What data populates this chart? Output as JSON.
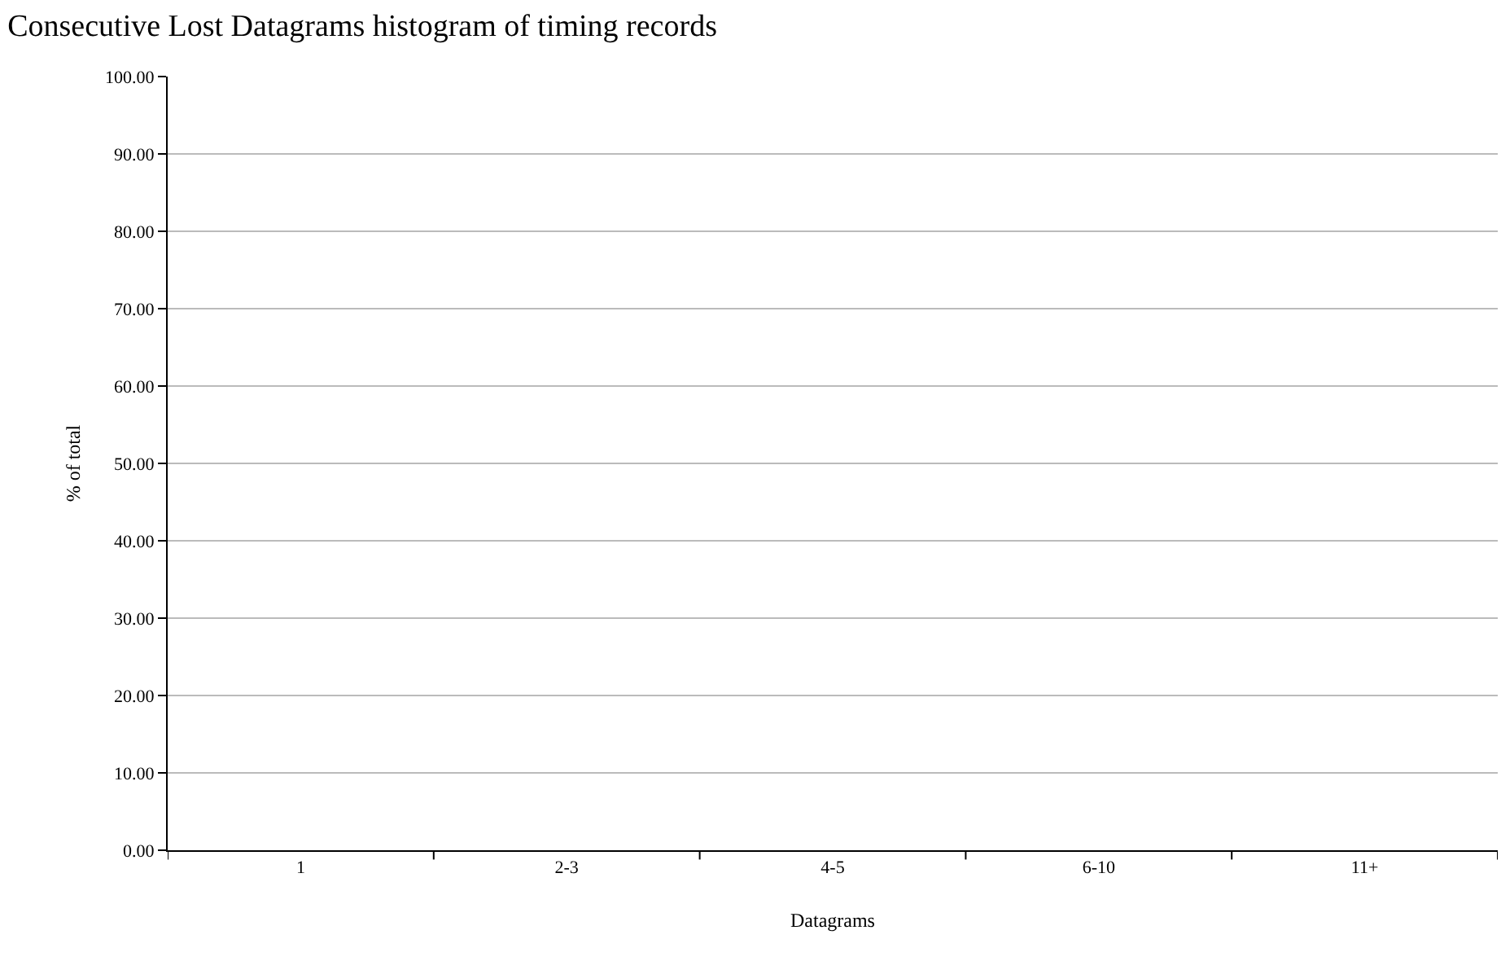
{
  "chart_data": {
    "type": "bar",
    "title": "Consecutive Lost Datagrams histogram of timing records",
    "xlabel": "Datagrams",
    "ylabel": "% of total",
    "categories": [
      "1",
      "2-3",
      "4-5",
      "6-10",
      "11+"
    ],
    "values": [
      0,
      0,
      0,
      0,
      0
    ],
    "ylim": [
      0,
      100
    ],
    "yticks": [
      {
        "value": 0,
        "label": "0.00"
      },
      {
        "value": 10,
        "label": "10.00"
      },
      {
        "value": 20,
        "label": "20.00"
      },
      {
        "value": 30,
        "label": "30.00"
      },
      {
        "value": 40,
        "label": "40.00"
      },
      {
        "value": 50,
        "label": "50.00"
      },
      {
        "value": 60,
        "label": "60.00"
      },
      {
        "value": 70,
        "label": "70.00"
      },
      {
        "value": 80,
        "label": "80.00"
      },
      {
        "value": 90,
        "label": "90.00"
      },
      {
        "value": 100,
        "label": "100.00"
      }
    ],
    "grid": "y"
  }
}
